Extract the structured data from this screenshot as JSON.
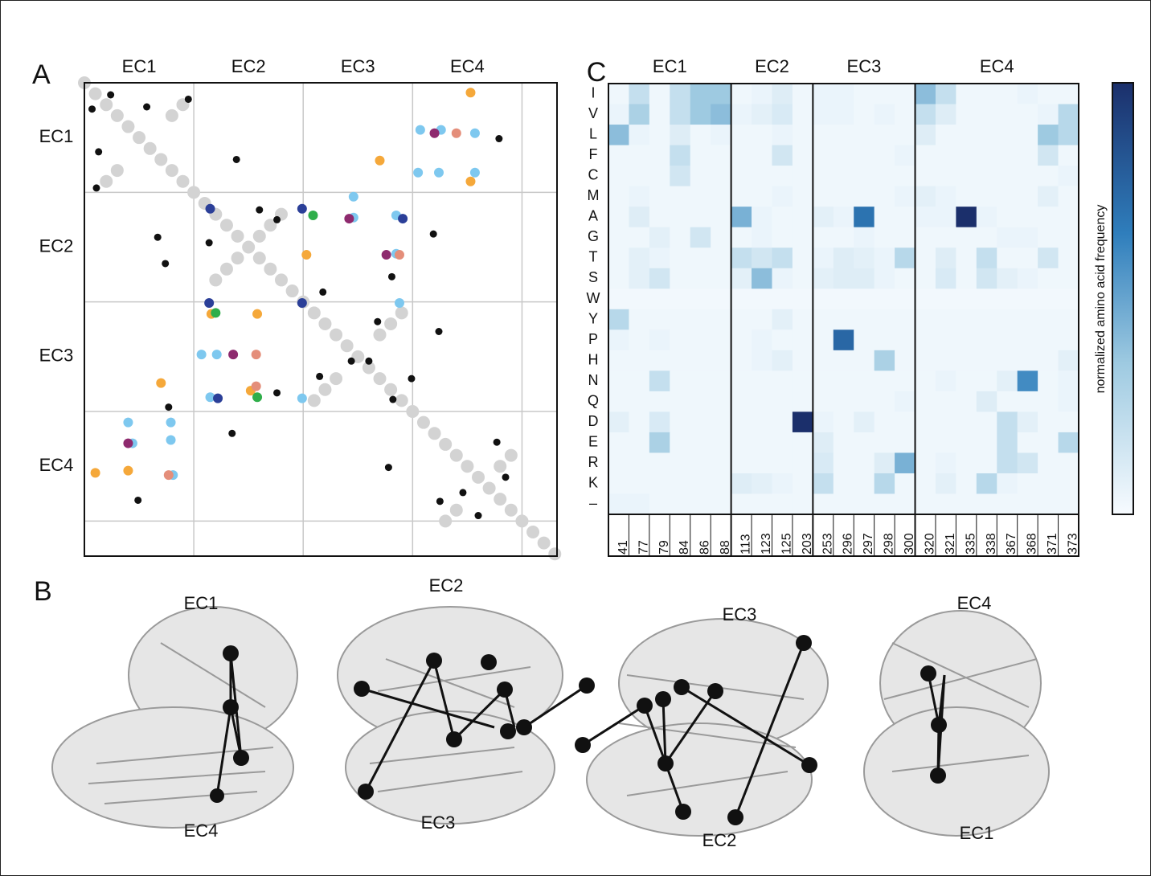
{
  "panel_a": {
    "label": "A",
    "col_labels": [
      "EC1",
      "EC2",
      "EC3",
      "EC4"
    ],
    "row_labels": [
      "EC1",
      "EC2",
      "EC3",
      "EC4"
    ],
    "xlim": [
      0,
      432
    ],
    "ylim": [
      0,
      432
    ],
    "grid": [
      100,
      200,
      300,
      400
    ],
    "local_contacts": {
      "color": "#d3d3d3",
      "x": [
        0,
        10,
        20,
        30,
        40,
        50,
        60,
        70,
        80,
        90,
        100,
        110,
        120,
        130,
        140,
        150,
        160,
        170,
        180,
        190,
        200,
        210,
        220,
        230,
        240,
        250,
        260,
        270,
        280,
        290,
        300,
        310,
        320,
        330,
        340,
        350,
        360,
        370,
        380,
        390,
        400,
        410,
        420,
        430,
        120,
        130,
        140,
        160,
        170,
        180,
        210,
        220,
        230,
        270,
        280,
        290,
        20,
        30,
        80,
        90,
        330,
        340,
        380,
        390
      ],
      "y": [
        0,
        10,
        20,
        30,
        40,
        50,
        60,
        70,
        80,
        90,
        100,
        110,
        120,
        130,
        140,
        150,
        160,
        170,
        180,
        190,
        200,
        210,
        220,
        230,
        240,
        250,
        260,
        270,
        280,
        290,
        300,
        310,
        320,
        330,
        340,
        350,
        360,
        370,
        380,
        390,
        400,
        410,
        420,
        430,
        180,
        170,
        160,
        140,
        130,
        120,
        290,
        280,
        270,
        230,
        220,
        210,
        90,
        80,
        30,
        20,
        400,
        390,
        350,
        340
      ]
    },
    "series": [
      {
        "name": "black",
        "color": "#111111",
        "x": [
          7,
          24,
          57,
          95,
          13,
          11,
          139,
          67,
          160,
          176,
          114,
          74,
          319,
          218,
          281,
          268,
          324,
          244,
          260,
          215,
          299,
          282,
          176,
          77,
          135,
          49,
          379,
          377,
          325,
          346,
          278,
          385,
          360
        ],
        "y": [
          24,
          11,
          22,
          15,
          63,
          96,
          70,
          141,
          116,
          125,
          146,
          165,
          138,
          191,
          177,
          218,
          227,
          254,
          254,
          268,
          270,
          289,
          283,
          296,
          320,
          381,
          51,
          328,
          382,
          374,
          351,
          360,
          395
        ]
      },
      {
        "name": "orange",
        "color": "#f5a83a",
        "x": [
          353,
          270,
          353,
          10,
          40,
          70,
          158,
          116,
          203,
          152
        ],
        "y": [
          9,
          71,
          90,
          356,
          354,
          274,
          211,
          211,
          157,
          281
        ]
      },
      {
        "name": "light-blue",
        "color": "#7ec8ef",
        "x": [
          307,
          326,
          357,
          305,
          324,
          357,
          246,
          285,
          285,
          246,
          40,
          79,
          79,
          44,
          81,
          107,
          121,
          115,
          288,
          199
        ],
        "y": [
          43,
          43,
          46,
          82,
          82,
          82,
          104,
          121,
          156,
          123,
          310,
          310,
          326,
          329,
          358,
          248,
          248,
          287,
          201,
          288
        ]
      },
      {
        "name": "purple",
        "color": "#8e2a6e",
        "x": [
          320,
          242,
          276,
          40,
          136
        ],
        "y": [
          46,
          124,
          157,
          329,
          248
        ]
      },
      {
        "name": "salmon",
        "color": "#e48e7a",
        "x": [
          340,
          288,
          77,
          157,
          157
        ],
        "y": [
          46,
          157,
          358,
          248,
          277
        ]
      },
      {
        "name": "navy",
        "color": "#2b3f98",
        "x": [
          115,
          199,
          291,
          114,
          199,
          122
        ],
        "y": [
          115,
          115,
          124,
          201,
          201,
          288
        ]
      },
      {
        "name": "green",
        "color": "#2fae4a",
        "x": [
          209,
          120,
          158
        ],
        "y": [
          121,
          210,
          287
        ]
      }
    ]
  },
  "panel_b": {
    "label": "B",
    "domain_labels": [
      "EC1",
      "EC2",
      "EC3",
      "EC4",
      "EC4",
      "EC3",
      "EC2",
      "EC1"
    ]
  },
  "panel_c": {
    "label": "C",
    "colorbar_label": "normalized amino acid frequency",
    "clim": [
      0,
      1
    ],
    "sections": [
      {
        "label": "EC1",
        "residues": [
          "41",
          "77",
          "79",
          "84",
          "86",
          "88"
        ]
      },
      {
        "label": "EC2",
        "residues": [
          "113",
          "123",
          "125",
          "203"
        ]
      },
      {
        "label": "EC3",
        "residues": [
          "253",
          "296",
          "297",
          "298",
          "300"
        ]
      },
      {
        "label": "EC4",
        "residues": [
          "320",
          "321",
          "335",
          "338",
          "367",
          "368",
          "371",
          "373"
        ]
      }
    ],
    "amino_acids": [
      "I",
      "V",
      "L",
      "F",
      "C",
      "M",
      "A",
      "G",
      "T",
      "S",
      "W",
      "Y",
      "P",
      "H",
      "N",
      "Q",
      "D",
      "E",
      "R",
      "K",
      "–"
    ],
    "frequencies": [
      [
        0.03,
        0.2,
        0.03,
        0.2,
        0.35,
        0.35,
        0.03,
        0.05,
        0.1,
        0.03,
        0.05,
        0.05,
        0.03,
        0.03,
        0.03,
        0.4,
        0.2,
        0.03,
        0.03,
        0.03,
        0.05,
        0.03,
        0.03
      ],
      [
        0.05,
        0.3,
        0.03,
        0.2,
        0.35,
        0.4,
        0.05,
        0.08,
        0.12,
        0.03,
        0.05,
        0.05,
        0.03,
        0.05,
        0.03,
        0.2,
        0.1,
        0.03,
        0.03,
        0.03,
        0.03,
        0.05,
        0.25
      ],
      [
        0.4,
        0.05,
        0.03,
        0.1,
        0.03,
        0.05,
        0.03,
        0.03,
        0.05,
        0.03,
        0.03,
        0.03,
        0.03,
        0.03,
        0.03,
        0.1,
        0.03,
        0.03,
        0.03,
        0.03,
        0.03,
        0.35,
        0.25
      ],
      [
        0.03,
        0.03,
        0.03,
        0.2,
        0.03,
        0.03,
        0.03,
        0.03,
        0.15,
        0.03,
        0.03,
        0.03,
        0.03,
        0.03,
        0.05,
        0.03,
        0.03,
        0.03,
        0.03,
        0.03,
        0.03,
        0.15,
        0.03
      ],
      [
        0.03,
        0.03,
        0.03,
        0.15,
        0.03,
        0.03,
        0.03,
        0.03,
        0.03,
        0.03,
        0.03,
        0.03,
        0.03,
        0.03,
        0.03,
        0.03,
        0.03,
        0.03,
        0.03,
        0.03,
        0.03,
        0.03,
        0.05
      ],
      [
        0.03,
        0.05,
        0.03,
        0.03,
        0.03,
        0.03,
        0.03,
        0.03,
        0.05,
        0.03,
        0.03,
        0.03,
        0.03,
        0.03,
        0.05,
        0.08,
        0.05,
        0.03,
        0.03,
        0.03,
        0.03,
        0.08,
        0.03
      ],
      [
        0.03,
        0.1,
        0.03,
        0.03,
        0.03,
        0.03,
        0.45,
        0.05,
        0.03,
        0.03,
        0.08,
        0.05,
        0.7,
        0.03,
        0.03,
        0.05,
        0.05,
        1,
        0.05,
        0.03,
        0.03,
        0.03,
        0.03
      ],
      [
        0.03,
        0.03,
        0.08,
        0.03,
        0.15,
        0.03,
        0.03,
        0.05,
        0.03,
        0.03,
        0.03,
        0.03,
        0.05,
        0.03,
        0.03,
        0.03,
        0.03,
        0.03,
        0.03,
        0.05,
        0.05,
        0.03,
        0.03
      ],
      [
        0.03,
        0.08,
        0.05,
        0.03,
        0.03,
        0.03,
        0.2,
        0.15,
        0.2,
        0.03,
        0.05,
        0.1,
        0.08,
        0.05,
        0.25,
        0.03,
        0.1,
        0.03,
        0.2,
        0.03,
        0.03,
        0.15,
        0.03
      ],
      [
        0.03,
        0.08,
        0.15,
        0.03,
        0.03,
        0.03,
        0.08,
        0.4,
        0.05,
        0.03,
        0.08,
        0.1,
        0.1,
        0.05,
        0.03,
        0.03,
        0.12,
        0.03,
        0.15,
        0.08,
        0.05,
        0.03,
        0.03
      ],
      [
        0.02,
        0.02,
        0.02,
        0.02,
        0.02,
        0.02,
        0.02,
        0.02,
        0.02,
        0.02,
        0.02,
        0.02,
        0.02,
        0.02,
        0.02,
        0.02,
        0.02,
        0.02,
        0.02,
        0.02,
        0.02,
        0.02,
        0.02
      ],
      [
        0.25,
        0.03,
        0.03,
        0.03,
        0.03,
        0.03,
        0.03,
        0.03,
        0.08,
        0.03,
        0.03,
        0.03,
        0.03,
        0.03,
        0.03,
        0.03,
        0.03,
        0.03,
        0.03,
        0.03,
        0.03,
        0.03,
        0.03
      ],
      [
        0.05,
        0.03,
        0.05,
        0.03,
        0.03,
        0.03,
        0.03,
        0.05,
        0.03,
        0.03,
        0.03,
        0.75,
        0.03,
        0.03,
        0.03,
        0.03,
        0.03,
        0.03,
        0.03,
        0.03,
        0.03,
        0.03,
        0.03
      ],
      [
        0.03,
        0.03,
        0.03,
        0.03,
        0.03,
        0.03,
        0.03,
        0.05,
        0.08,
        0.03,
        0.03,
        0.03,
        0.03,
        0.3,
        0.03,
        0.03,
        0.03,
        0.03,
        0.03,
        0.03,
        0.03,
        0.03,
        0.08
      ],
      [
        0.03,
        0.03,
        0.2,
        0.03,
        0.03,
        0.03,
        0.03,
        0.03,
        0.03,
        0.03,
        0.03,
        0.03,
        0.03,
        0.03,
        0.03,
        0.03,
        0.05,
        0.03,
        0.03,
        0.08,
        0.6,
        0.03,
        0.05
      ],
      [
        0.03,
        0.03,
        0.03,
        0.03,
        0.03,
        0.03,
        0.03,
        0.03,
        0.03,
        0.03,
        0.03,
        0.03,
        0.03,
        0.03,
        0.05,
        0.03,
        0.03,
        0.03,
        0.1,
        0.03,
        0.03,
        0.03,
        0.05
      ],
      [
        0.08,
        0.03,
        0.12,
        0.03,
        0.03,
        0.03,
        0.03,
        0.03,
        0.03,
        1,
        0.05,
        0.03,
        0.08,
        0.03,
        0.03,
        0.03,
        0.03,
        0.03,
        0.03,
        0.2,
        0.08,
        0.03,
        0.03
      ],
      [
        0.03,
        0.03,
        0.3,
        0.03,
        0.03,
        0.03,
        0.03,
        0.03,
        0.03,
        0.03,
        0.1,
        0.03,
        0.03,
        0.03,
        0.03,
        0.03,
        0.03,
        0.03,
        0.03,
        0.2,
        0.03,
        0.03,
        0.25
      ],
      [
        0.03,
        0.03,
        0.03,
        0.03,
        0.03,
        0.03,
        0.03,
        0.03,
        0.03,
        0.03,
        0.12,
        0.03,
        0.03,
        0.1,
        0.45,
        0.03,
        0.05,
        0.03,
        0.03,
        0.2,
        0.15,
        0.03,
        0.03
      ],
      [
        0.03,
        0.03,
        0.03,
        0.03,
        0.03,
        0.03,
        0.1,
        0.08,
        0.05,
        0.03,
        0.2,
        0.03,
        0.03,
        0.25,
        0.03,
        0.03,
        0.08,
        0.03,
        0.25,
        0.05,
        0.03,
        0.03,
        0.03
      ],
      [
        0.05,
        0.05,
        0.03,
        0.03,
        0.03,
        0.03,
        0.03,
        0.03,
        0.03,
        0.03,
        0.03,
        0.03,
        0.03,
        0.03,
        0.03,
        0.03,
        0.03,
        0.03,
        0.03,
        0.03,
        0.03,
        0.03,
        0.03
      ]
    ]
  }
}
